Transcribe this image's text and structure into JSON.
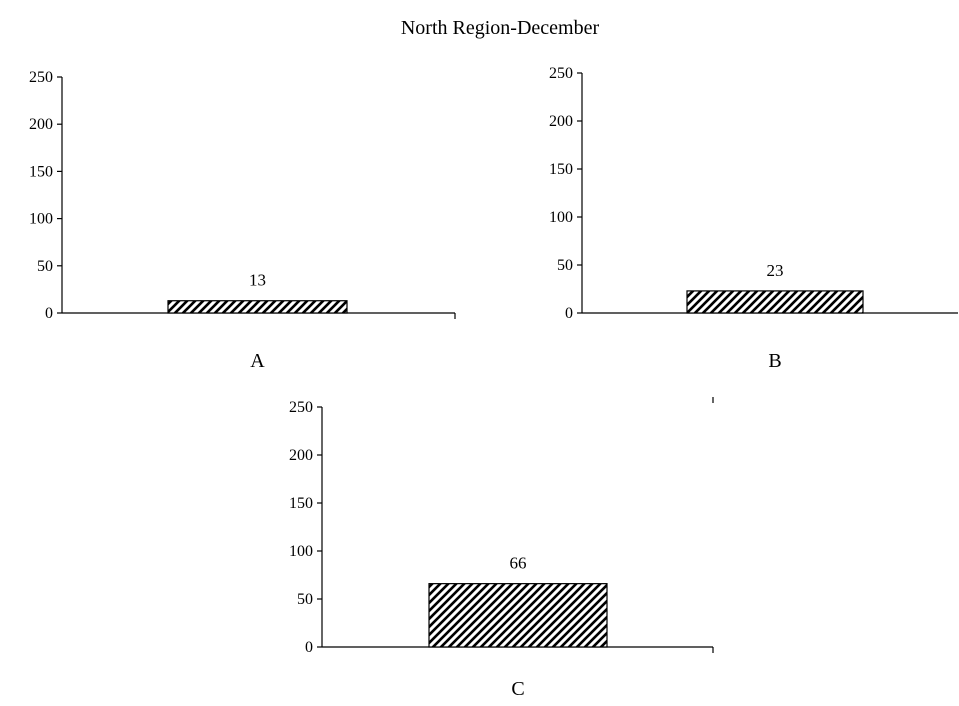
{
  "title": "North Region-December",
  "colors": {
    "bar_stroke": "#000000",
    "hatch": "#000000",
    "background": "#ffffff"
  },
  "chart_data": [
    {
      "type": "bar",
      "pattern": "diagonal-hatch",
      "categories": [
        "A"
      ],
      "values": [
        13
      ],
      "data_labels": [
        "13"
      ],
      "ylim": [
        0,
        250
      ],
      "yticks": [
        0,
        50,
        100,
        150,
        200,
        250
      ],
      "ytick_labels": [
        "0",
        "50",
        "100",
        "150",
        "200",
        "250"
      ],
      "grid": false,
      "legend": "none",
      "xlabel": "",
      "ylabel": ""
    },
    {
      "type": "bar",
      "pattern": "diagonal-hatch",
      "categories": [
        "B"
      ],
      "values": [
        23
      ],
      "data_labels": [
        "23"
      ],
      "ylim": [
        0,
        250
      ],
      "yticks": [
        0,
        50,
        100,
        150,
        200,
        250
      ],
      "ytick_labels": [
        "0",
        "50",
        "100",
        "150",
        "200",
        "250"
      ],
      "grid": false,
      "legend": "none",
      "xlabel": "",
      "ylabel": ""
    },
    {
      "type": "bar",
      "pattern": "diagonal-hatch",
      "categories": [
        "C"
      ],
      "values": [
        66
      ],
      "data_labels": [
        "66"
      ],
      "ylim": [
        0,
        250
      ],
      "yticks": [
        0,
        50,
        100,
        150,
        200,
        250
      ],
      "ytick_labels": [
        "0",
        "50",
        "100",
        "150",
        "200",
        "250"
      ],
      "grid": false,
      "legend": "none",
      "xlabel": "",
      "ylabel": ""
    }
  ]
}
